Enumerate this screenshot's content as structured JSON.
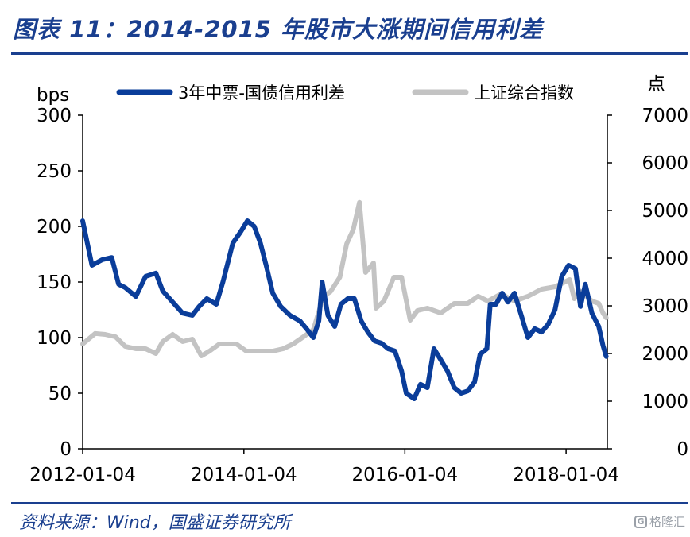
{
  "header": {
    "title": "图表 11：2014-2015 年股市大涨期间信用利差"
  },
  "footer": {
    "source": "资料来源：Wind，国盛证券研究所",
    "watermark": "格隆汇",
    "watermark_logo": "G"
  },
  "colors": {
    "series_spread": "#0a3d9a",
    "series_index": "#c3c3c3",
    "title": "#1a3f8f"
  },
  "chart_data": {
    "type": "line",
    "x_tick_labels": [
      "2012-01-04",
      "2014-01-04",
      "2016-01-04",
      "2018-01-04"
    ],
    "xlim": [
      "2012-01-04",
      "2018-07-10"
    ],
    "left_axis": {
      "label": "bps",
      "ylim": [
        0,
        300
      ],
      "ticks": [
        "0",
        "50",
        "100",
        "150",
        "200",
        "250",
        "300"
      ]
    },
    "right_axis": {
      "label": "点",
      "ylim": [
        0,
        7000
      ],
      "ticks": [
        "0",
        "1000",
        "2000",
        "3000",
        "4000",
        "5000",
        "6000",
        "7000"
      ]
    },
    "legend_position": "top",
    "grid": false,
    "series": [
      {
        "name": "3年中票-国债信用利差",
        "axis": "left",
        "color": "#0a3d9a",
        "points": [
          [
            "2012-01-04",
            205
          ],
          [
            "2012-02-15",
            165
          ],
          [
            "2012-04-01",
            170
          ],
          [
            "2012-05-15",
            172
          ],
          [
            "2012-06-15",
            148
          ],
          [
            "2012-07-15",
            145
          ],
          [
            "2012-09-01",
            137
          ],
          [
            "2012-10-15",
            155
          ],
          [
            "2012-12-01",
            158
          ],
          [
            "2013-01-01",
            142
          ],
          [
            "2013-02-15",
            132
          ],
          [
            "2013-04-01",
            122
          ],
          [
            "2013-05-15",
            120
          ],
          [
            "2013-06-15",
            128
          ],
          [
            "2013-07-20",
            135
          ],
          [
            "2013-09-01",
            130
          ],
          [
            "2013-10-01",
            150
          ],
          [
            "2013-11-15",
            185
          ],
          [
            "2013-12-20",
            195
          ],
          [
            "2014-01-20",
            205
          ],
          [
            "2014-02-20",
            200
          ],
          [
            "2014-03-20",
            185
          ],
          [
            "2014-04-15",
            165
          ],
          [
            "2014-05-15",
            140
          ],
          [
            "2014-06-20",
            128
          ],
          [
            "2014-08-01",
            120
          ],
          [
            "2014-09-15",
            115
          ],
          [
            "2014-10-15",
            108
          ],
          [
            "2014-11-15",
            100
          ],
          [
            "2014-12-10",
            115
          ],
          [
            "2014-12-25",
            150
          ],
          [
            "2015-01-20",
            120
          ],
          [
            "2015-02-20",
            110
          ],
          [
            "2015-03-20",
            130
          ],
          [
            "2015-04-20",
            135
          ],
          [
            "2015-05-20",
            135
          ],
          [
            "2015-06-20",
            115
          ],
          [
            "2015-07-20",
            105
          ],
          [
            "2015-08-20",
            97
          ],
          [
            "2015-09-20",
            95
          ],
          [
            "2015-10-20",
            90
          ],
          [
            "2015-11-20",
            88
          ],
          [
            "2015-12-20",
            70
          ],
          [
            "2016-01-10",
            50
          ],
          [
            "2016-02-15",
            45
          ],
          [
            "2016-03-15",
            58
          ],
          [
            "2016-04-15",
            55
          ],
          [
            "2016-05-15",
            90
          ],
          [
            "2016-06-15",
            80
          ],
          [
            "2016-07-15",
            70
          ],
          [
            "2016-08-15",
            55
          ],
          [
            "2016-09-15",
            50
          ],
          [
            "2016-10-15",
            52
          ],
          [
            "2016-11-15",
            60
          ],
          [
            "2016-12-10",
            85
          ],
          [
            "2017-01-10",
            90
          ],
          [
            "2017-01-25",
            130
          ],
          [
            "2017-02-20",
            130
          ],
          [
            "2017-03-20",
            140
          ],
          [
            "2017-04-15",
            132
          ],
          [
            "2017-05-15",
            140
          ],
          [
            "2017-06-15",
            120
          ],
          [
            "2017-07-15",
            100
          ],
          [
            "2017-08-15",
            108
          ],
          [
            "2017-09-15",
            105
          ],
          [
            "2017-10-15",
            112
          ],
          [
            "2017-11-15",
            125
          ],
          [
            "2017-12-15",
            155
          ],
          [
            "2018-01-15",
            165
          ],
          [
            "2018-02-15",
            162
          ],
          [
            "2018-03-10",
            128
          ],
          [
            "2018-04-01",
            148
          ],
          [
            "2018-05-01",
            122
          ],
          [
            "2018-06-01",
            110
          ],
          [
            "2018-06-20",
            93
          ],
          [
            "2018-07-05",
            83
          ]
        ]
      },
      {
        "name": "上证综合指数",
        "axis": "right",
        "color": "#c3c3c3",
        "points": [
          [
            "2012-01-04",
            2200
          ],
          [
            "2012-03-01",
            2420
          ],
          [
            "2012-04-15",
            2400
          ],
          [
            "2012-06-01",
            2350
          ],
          [
            "2012-07-15",
            2150
          ],
          [
            "2012-09-01",
            2100
          ],
          [
            "2012-10-15",
            2100
          ],
          [
            "2012-12-01",
            2000
          ],
          [
            "2013-01-01",
            2250
          ],
          [
            "2013-02-15",
            2400
          ],
          [
            "2013-04-01",
            2250
          ],
          [
            "2013-05-15",
            2300
          ],
          [
            "2013-06-25",
            1950
          ],
          [
            "2013-08-01",
            2050
          ],
          [
            "2013-09-15",
            2200
          ],
          [
            "2013-10-15",
            2200
          ],
          [
            "2013-12-01",
            2200
          ],
          [
            "2014-01-15",
            2050
          ],
          [
            "2014-03-15",
            2050
          ],
          [
            "2014-05-15",
            2050
          ],
          [
            "2014-07-01",
            2100
          ],
          [
            "2014-08-15",
            2200
          ],
          [
            "2014-10-01",
            2350
          ],
          [
            "2014-11-15",
            2500
          ],
          [
            "2014-12-31",
            3200
          ],
          [
            "2015-02-01",
            3300
          ],
          [
            "2015-03-15",
            3600
          ],
          [
            "2015-04-15",
            4300
          ],
          [
            "2015-05-15",
            4600
          ],
          [
            "2015-06-12",
            5170
          ],
          [
            "2015-07-10",
            3700
          ],
          [
            "2015-08-15",
            3900
          ],
          [
            "2015-08-26",
            2950
          ],
          [
            "2015-10-01",
            3100
          ],
          [
            "2015-11-15",
            3600
          ],
          [
            "2015-12-20",
            3600
          ],
          [
            "2016-01-28",
            2700
          ],
          [
            "2016-03-01",
            2900
          ],
          [
            "2016-04-15",
            2950
          ],
          [
            "2016-06-15",
            2850
          ],
          [
            "2016-08-15",
            3050
          ],
          [
            "2016-10-15",
            3050
          ],
          [
            "2016-12-01",
            3200
          ],
          [
            "2017-01-15",
            3100
          ],
          [
            "2017-03-15",
            3250
          ],
          [
            "2017-05-15",
            3100
          ],
          [
            "2017-07-15",
            3200
          ],
          [
            "2017-09-15",
            3350
          ],
          [
            "2017-11-15",
            3400
          ],
          [
            "2018-01-20",
            3550
          ],
          [
            "2018-02-10",
            3150
          ],
          [
            "2018-03-15",
            3300
          ],
          [
            "2018-05-01",
            3100
          ],
          [
            "2018-06-01",
            3050
          ],
          [
            "2018-06-20",
            2850
          ],
          [
            "2018-07-05",
            2750
          ]
        ]
      }
    ]
  }
}
